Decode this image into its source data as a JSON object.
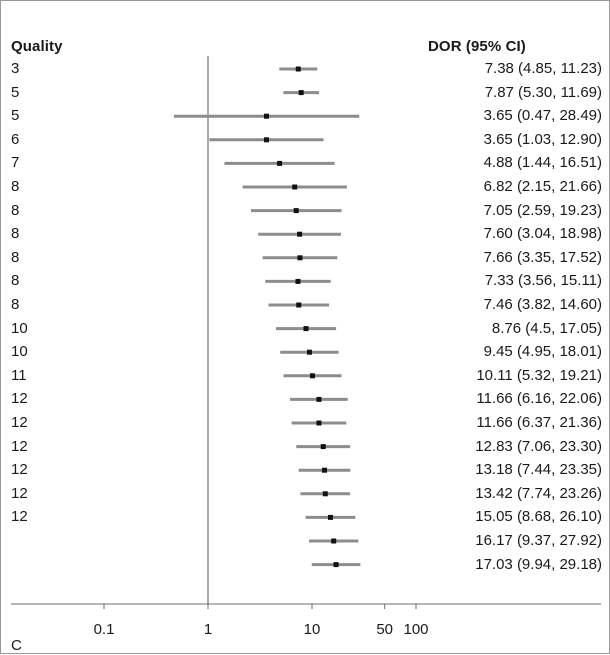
{
  "chart_data": {
    "type": "forest",
    "left_column_header": "Quality",
    "right_column_header": "DOR (95% CI)",
    "x_scale": "log",
    "x_tick_labels": [
      "0.1",
      "1",
      "10",
      "50",
      "100"
    ],
    "x_ticks": [
      0.1,
      1,
      10,
      50,
      100
    ],
    "x_range": [
      0.01,
      1000
    ],
    "reference_line": 1,
    "panel_label": "C",
    "rows": [
      {
        "quality": "3",
        "dor": 7.38,
        "lo": 4.85,
        "hi": 11.23,
        "label": "7.38 (4.85, 11.23)"
      },
      {
        "quality": "5",
        "dor": 7.87,
        "lo": 5.3,
        "hi": 11.69,
        "label": "7.87 (5.30, 11.69)"
      },
      {
        "quality": "5",
        "dor": 3.65,
        "lo": 0.47,
        "hi": 28.49,
        "label": "3.65 (0.47, 28.49)"
      },
      {
        "quality": "6",
        "dor": 3.65,
        "lo": 1.03,
        "hi": 12.9,
        "label": "3.65 (1.03, 12.90)"
      },
      {
        "quality": "7",
        "dor": 4.88,
        "lo": 1.44,
        "hi": 16.51,
        "label": "4.88 (1.44, 16.51)"
      },
      {
        "quality": "8",
        "dor": 6.82,
        "lo": 2.15,
        "hi": 21.66,
        "label": "6.82 (2.15, 21.66)"
      },
      {
        "quality": "8",
        "dor": 7.05,
        "lo": 2.59,
        "hi": 19.23,
        "label": "7.05 (2.59, 19.23)"
      },
      {
        "quality": "8",
        "dor": 7.6,
        "lo": 3.04,
        "hi": 18.98,
        "label": "7.60 (3.04, 18.98)"
      },
      {
        "quality": "8",
        "dor": 7.66,
        "lo": 3.35,
        "hi": 17.52,
        "label": "7.66 (3.35, 17.52)"
      },
      {
        "quality": "8",
        "dor": 7.33,
        "lo": 3.56,
        "hi": 15.11,
        "label": "7.33 (3.56, 15.11)"
      },
      {
        "quality": "8",
        "dor": 7.46,
        "lo": 3.82,
        "hi": 14.6,
        "label": "7.46 (3.82, 14.60)"
      },
      {
        "quality": "10",
        "dor": 8.76,
        "lo": 4.5,
        "hi": 17.05,
        "label": "8.76 (4.5, 17.05)"
      },
      {
        "quality": "10",
        "dor": 9.45,
        "lo": 4.95,
        "hi": 18.01,
        "label": "9.45 (4.95, 18.01)"
      },
      {
        "quality": "11",
        "dor": 10.11,
        "lo": 5.32,
        "hi": 19.21,
        "label": "10.11 (5.32, 19.21)"
      },
      {
        "quality": "12",
        "dor": 11.66,
        "lo": 6.16,
        "hi": 22.06,
        "label": "11.66 (6.16, 22.06)"
      },
      {
        "quality": "12",
        "dor": 11.66,
        "lo": 6.37,
        "hi": 21.36,
        "label": "11.66 (6.37, 21.36)"
      },
      {
        "quality": "12",
        "dor": 12.83,
        "lo": 7.06,
        "hi": 23.3,
        "label": "12.83 (7.06, 23.30)"
      },
      {
        "quality": "12",
        "dor": 13.18,
        "lo": 7.44,
        "hi": 23.35,
        "label": "13.18 (7.44, 23.35)"
      },
      {
        "quality": "12",
        "dor": 13.42,
        "lo": 7.74,
        "hi": 23.26,
        "label": "13.42 (7.74, 23.26)"
      },
      {
        "quality": "12",
        "dor": 15.05,
        "lo": 8.68,
        "hi": 26.1,
        "label": "15.05 (8.68, 26.10)"
      },
      {
        "quality": "",
        "dor": 16.17,
        "lo": 9.37,
        "hi": 27.92,
        "label": "16.17 (9.37, 27.92)"
      },
      {
        "quality": "",
        "dor": 17.03,
        "lo": 9.94,
        "hi": 29.18,
        "label": "17.03 (9.94, 29.18)"
      }
    ],
    "colors": {
      "ci_bar": "#8c8c8c",
      "point": "#111111",
      "axis": "#6e6e6e",
      "reference_line": "#6e6e6e"
    }
  }
}
